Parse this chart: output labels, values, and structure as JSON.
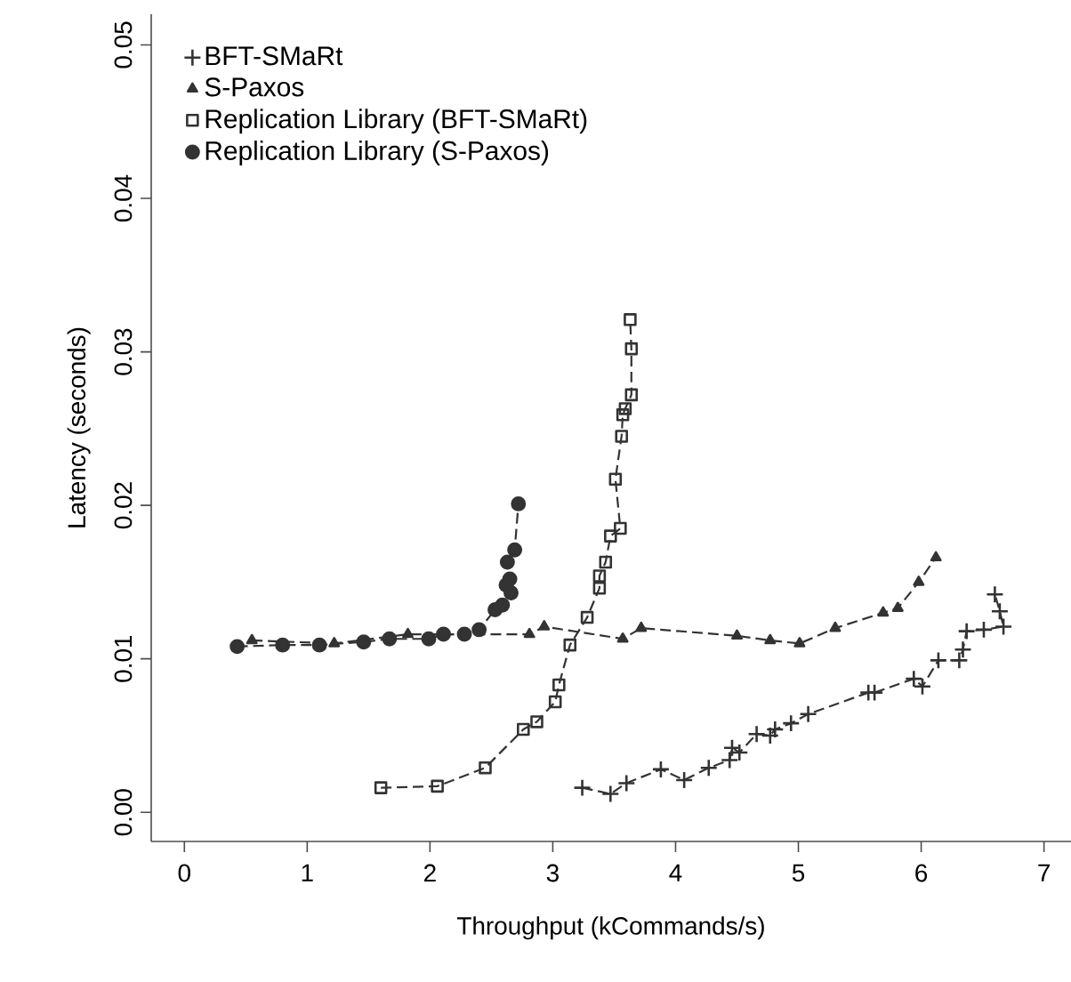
{
  "chart_data": {
    "type": "line",
    "xlabel": "Throughput (kCommands/s)",
    "ylabel": "Latency (seconds)",
    "xlim": [
      -0.27,
      7.22
    ],
    "ylim": [
      -0.0019,
      0.052
    ],
    "xticks": [
      0,
      1,
      2,
      3,
      4,
      5,
      6,
      7
    ],
    "yticks": [
      {
        "value": 0,
        "label": "0.00"
      },
      {
        "value": 0.01,
        "label": "0.01"
      },
      {
        "value": 0.02,
        "label": "0.02"
      },
      {
        "value": 0.03,
        "label": "0.03"
      },
      {
        "value": 0.04,
        "label": "0.04"
      },
      {
        "value": 0.05,
        "label": "0.05"
      }
    ],
    "legend": "top left",
    "grid": false,
    "line_style": "dashed",
    "series": [
      {
        "name": "BFT-SMaRt",
        "color": "#333333",
        "marker": "cross",
        "x": [
          3.24,
          3.47,
          3.6,
          3.88,
          4.07,
          4.27,
          4.44,
          4.46,
          4.52,
          4.66,
          4.77,
          4.81,
          4.94,
          5.08,
          5.57,
          5.62,
          5.94,
          6.01,
          6.14,
          6.31,
          6.34,
          6.37,
          6.51,
          6.67,
          6.64,
          6.6
        ],
        "values": [
          0.0016,
          0.0012,
          0.0019,
          0.0028,
          0.0021,
          0.0029,
          0.0034,
          0.0042,
          0.0039,
          0.0051,
          0.005,
          0.0054,
          0.0058,
          0.0064,
          0.0078,
          0.0078,
          0.0087,
          0.0082,
          0.0099,
          0.0099,
          0.0106,
          0.0118,
          0.0119,
          0.0121,
          0.0131,
          0.0142
        ]
      },
      {
        "name": "S-Paxos",
        "color": "#333333",
        "marker": "triangle",
        "x": [
          0.55,
          1.22,
          1.82,
          2.81,
          2.93,
          3.57,
          3.72,
          4.5,
          4.77,
          5.01,
          5.3,
          5.69,
          5.81,
          5.98,
          6.12
        ],
        "values": [
          0.0112,
          0.011,
          0.0116,
          0.0116,
          0.0121,
          0.0113,
          0.012,
          0.0115,
          0.0112,
          0.011,
          0.012,
          0.013,
          0.0133,
          0.015,
          0.0166
        ]
      },
      {
        "name": "Replication Library (BFT-SMaRt)",
        "color": "#333333",
        "marker": "square",
        "x": [
          1.6,
          2.06,
          2.45,
          2.76,
          2.87,
          3.02,
          3.05,
          3.14,
          3.28,
          3.38,
          3.38,
          3.43,
          3.47,
          3.55,
          3.51,
          3.56,
          3.57,
          3.59,
          3.64,
          3.64,
          3.63
        ],
        "values": [
          0.0016,
          0.0017,
          0.0029,
          0.0054,
          0.0059,
          0.0072,
          0.0083,
          0.0109,
          0.0127,
          0.0146,
          0.0154,
          0.0163,
          0.018,
          0.0185,
          0.0217,
          0.0245,
          0.0259,
          0.0263,
          0.0272,
          0.0302,
          0.0321
        ]
      },
      {
        "name": "Replication Library (S-Paxos)",
        "color": "#333333",
        "marker": "circle",
        "x": [
          0.43,
          0.8,
          1.1,
          1.46,
          1.67,
          1.99,
          2.11,
          2.28,
          2.4,
          2.53,
          2.59,
          2.66,
          2.62,
          2.65,
          2.63,
          2.69,
          2.72
        ],
        "values": [
          0.0108,
          0.0109,
          0.0109,
          0.0111,
          0.0113,
          0.0113,
          0.0116,
          0.0116,
          0.0119,
          0.0132,
          0.0135,
          0.0143,
          0.0148,
          0.0152,
          0.0163,
          0.0171,
          0.0201
        ]
      }
    ]
  }
}
